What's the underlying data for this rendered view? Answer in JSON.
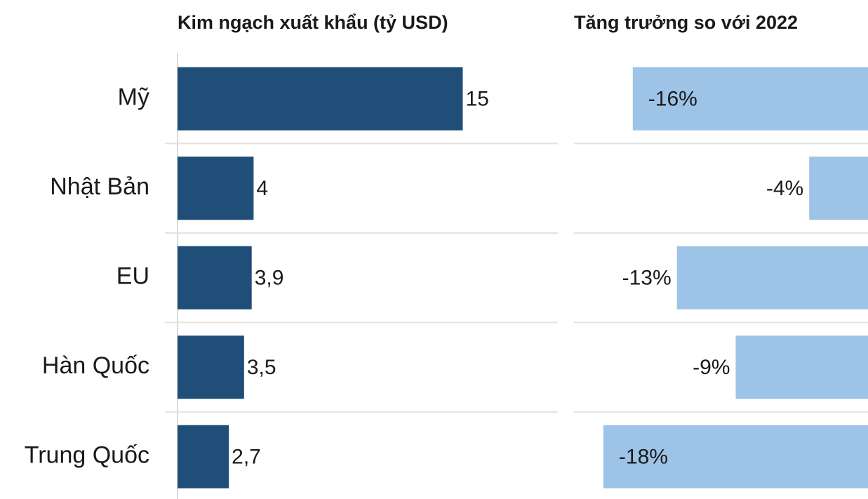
{
  "chart_data": [
    {
      "type": "hbar",
      "title": "Kim ngạch xuất khẩu (tỷ USD)",
      "categories": [
        "Mỹ",
        "Nhật Bản",
        "EU",
        "Hàn Quốc",
        "Trung Quốc"
      ],
      "values": [
        15,
        4,
        3.9,
        3.5,
        2.7
      ],
      "value_labels": [
        "15",
        "4",
        "3,9",
        "3,5",
        "2,7"
      ],
      "color": "#1f4e79",
      "xlim": [
        0,
        20
      ]
    },
    {
      "type": "hbar",
      "title": "Tăng trưởng so với 2022",
      "values": [
        -16,
        -4,
        -13,
        -9,
        -18
      ],
      "value_labels": [
        "-16%",
        "-4%",
        "-13%",
        "-9%",
        "-18%"
      ],
      "color": "#9dc3e6",
      "xlim": [
        -20,
        0
      ]
    }
  ]
}
